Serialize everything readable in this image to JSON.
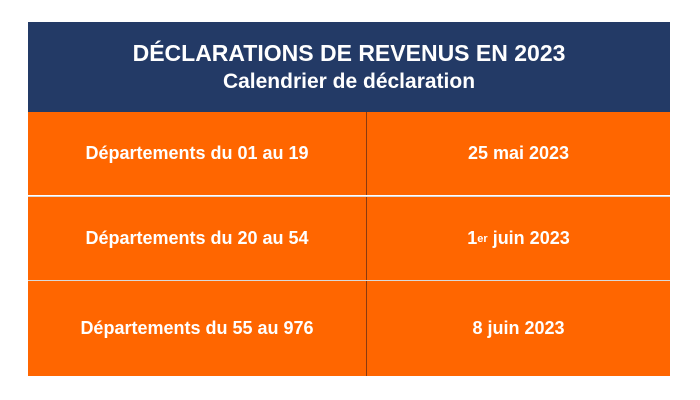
{
  "header": {
    "title": "DÉCLARATIONS DE REVENUS EN 2023",
    "subtitle": "Calendrier de déclaration"
  },
  "rows": [
    {
      "departments": "Départements du 01 au 19",
      "date_prefix": "25 mai 2023",
      "date_sup": "",
      "date_suffix": ""
    },
    {
      "departments": "Départements du 20 au 54",
      "date_prefix": "1",
      "date_sup": "er",
      "date_suffix": " juin 2023"
    },
    {
      "departments": "Départements du 55 au 976",
      "date_prefix": "8 juin 2023",
      "date_sup": "",
      "date_suffix": ""
    }
  ],
  "colors": {
    "header_bg": "#233a66",
    "row_bg": "#ff6600",
    "text": "#ffffff"
  }
}
